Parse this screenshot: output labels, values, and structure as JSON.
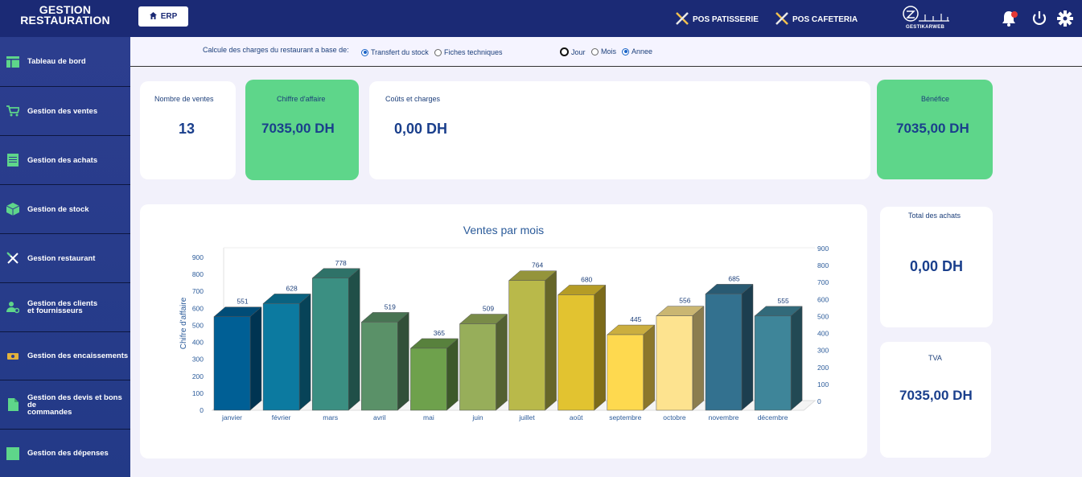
{
  "app": {
    "title_line1": "GESTION",
    "title_line2": "RESTAURATION"
  },
  "sidebar": {
    "items": [
      {
        "label": "Tableau de bord",
        "icon": "dashboard-icon"
      },
      {
        "label": "Gestion des ventes",
        "icon": "cart-icon"
      },
      {
        "label": "Gestion des achats",
        "icon": "document-icon"
      },
      {
        "label": "Gestion de stock",
        "icon": "box-icon"
      },
      {
        "label": "Gestion restaurant",
        "icon": "utensils-icon"
      },
      {
        "label_line1": "Gestion des clients",
        "label_line2": "et fournisseurs",
        "icon": "users-gear-icon"
      },
      {
        "label": "Gestion des encaissements",
        "icon": "money-icon"
      },
      {
        "label_line1": "Gestion des devis et bons de",
        "label_line2": "commandes",
        "icon": "file-icon"
      },
      {
        "label": "Gestion des dépenses",
        "icon": "square-icon"
      }
    ]
  },
  "topbar": {
    "erp_label": "ERP",
    "pos_patisserie": "POS PATISSERIE",
    "pos_cafeteria": "POS CAFETERIA",
    "logo_text": "GESTIKARWEB"
  },
  "filter": {
    "caption": "Calcule des charges du restaurant a base de:",
    "basis_options": [
      {
        "label": "Transfert du stock",
        "selected": true
      },
      {
        "label": "Fiches techniques",
        "selected": false
      }
    ],
    "period_options": [
      {
        "label": "Jour",
        "selected": false
      },
      {
        "label": "Mois",
        "selected": false
      },
      {
        "label": "Annee",
        "selected": true
      }
    ]
  },
  "cards": {
    "nombre_ventes": {
      "title": "Nombre de ventes",
      "value": "13"
    },
    "chiffre_affaire": {
      "title": "Chiffre d'affaire",
      "value": "7035,00 DH"
    },
    "couts_charges": {
      "title": "Coûts et charges",
      "value": "0,00 DH"
    },
    "benefice": {
      "title": "Bénéfice",
      "value": "7035,00 DH"
    },
    "total_achats": {
      "title": "Total des achats",
      "value": "0,00 DH"
    },
    "tva": {
      "title": "TVA",
      "value": "7035,00 DH"
    }
  },
  "colors": {
    "sidebar": "#2d3e8f",
    "topbar": "#1b2a75",
    "green_card": "#5ed68a",
    "accent_text": "#1a3f8c"
  },
  "chart_data": {
    "type": "bar",
    "title": "Ventes par mois",
    "ylabel": "Chifre d'affaire",
    "ylim": [
      0,
      900
    ],
    "yticks": [
      0,
      100,
      200,
      300,
      400,
      500,
      600,
      700,
      800,
      900
    ],
    "categories": [
      "janvier",
      "février",
      "mars",
      "avril",
      "mai",
      "juin",
      "juillet",
      "août",
      "septembre",
      "octobre",
      "novembre",
      "décembre"
    ],
    "values": [
      551,
      628,
      778,
      519,
      365,
      509,
      764,
      680,
      445,
      556,
      685,
      555
    ],
    "bar_colors": [
      "#005f95",
      "#0c7aa0",
      "#3b8f82",
      "#5a9168",
      "#6ea14c",
      "#97ae5a",
      "#b9b94a",
      "#e2c330",
      "#fed94f",
      "#fde38f",
      "#33718f",
      "#3e8599"
    ],
    "secondary_axis": true
  }
}
